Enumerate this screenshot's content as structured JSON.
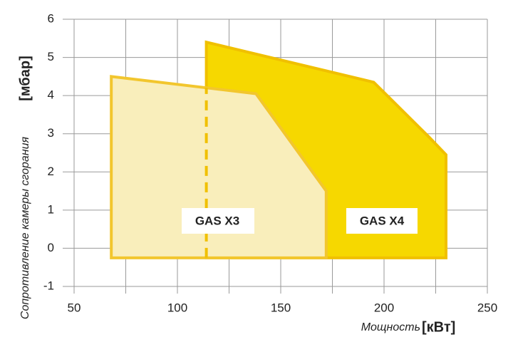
{
  "chart_data": {
    "type": "area",
    "xlabel": "Мощность",
    "xunit": "[кВт]",
    "ylabel": "Сопротивление камеры сгорания",
    "yunit": "[мбар]",
    "xlim": [
      50,
      250
    ],
    "xticks": [
      50,
      100,
      150,
      200,
      250
    ],
    "ylim": [
      -1,
      6
    ],
    "yticks": [
      -1,
      0,
      1,
      2,
      3,
      4,
      5,
      6
    ],
    "grid": true,
    "series": [
      {
        "name": "GAS X3",
        "color": "#f9eebb",
        "edge_color": "#f2c62e",
        "x": [
          68,
          68,
          138,
          172,
          172
        ],
        "values": [
          -0.25,
          4.5,
          4.05,
          1.5,
          -0.25
        ]
      },
      {
        "name": "GAS X4",
        "color": "#f6d800",
        "edge_color": "#f0c000",
        "x": [
          114,
          114,
          195,
          222,
          230,
          230
        ],
        "values": [
          -0.25,
          5.4,
          4.35,
          2.9,
          2.45,
          -0.25
        ]
      }
    ]
  }
}
